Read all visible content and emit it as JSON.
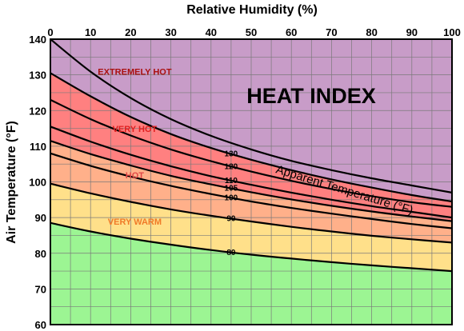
{
  "chart_data": {
    "type": "area",
    "title": "HEAT INDEX",
    "xlabel": "Relative Humidity (%)",
    "ylabel": "Air Temperature (°F)",
    "xlim": [
      0,
      100
    ],
    "ylim": [
      60,
      140
    ],
    "x_ticks": [
      "0",
      "10",
      "20",
      "30",
      "40",
      "50",
      "60",
      "70",
      "80",
      "90",
      "100"
    ],
    "y_ticks": [
      "60",
      "70",
      "80",
      "90",
      "100",
      "110",
      "120",
      "130",
      "140"
    ],
    "grid": true,
    "curve_annotation": "Apparent Temperature (°F)",
    "series": [
      {
        "name": "80",
        "x": [
          0,
          10,
          20,
          30,
          40,
          50,
          60,
          70,
          80,
          90,
          100
        ],
        "y": [
          88.5,
          86.1,
          84.1,
          82.4,
          80.9,
          79.6,
          78.5,
          77.5,
          76.6,
          75.8,
          75.0
        ]
      },
      {
        "name": "90",
        "x": [
          0,
          10,
          20,
          30,
          40,
          50,
          60,
          70,
          80,
          90,
          100
        ],
        "y": [
          99.5,
          96.8,
          94.4,
          92.3,
          90.5,
          88.9,
          87.4,
          86.1,
          84.9,
          83.9,
          83.0
        ]
      },
      {
        "name": "100",
        "x": [
          0,
          10,
          20,
          30,
          40,
          50,
          60,
          70,
          80,
          90,
          100
        ],
        "y": [
          108.0,
          104.5,
          101.5,
          98.9,
          96.6,
          94.5,
          92.7,
          91.1,
          89.6,
          88.2,
          87.0
        ]
      },
      {
        "name": "105",
        "x": [
          0,
          10,
          20,
          30,
          40,
          50,
          60,
          70,
          80,
          90,
          100
        ],
        "y": [
          111.5,
          107.8,
          104.6,
          101.7,
          99.3,
          97.1,
          95.1,
          93.3,
          91.7,
          90.3,
          89.0
        ]
      },
      {
        "name": "110",
        "x": [
          0,
          10,
          20,
          30,
          40,
          50,
          60,
          70,
          80,
          90,
          100
        ],
        "y": [
          115.5,
          111.3,
          107.6,
          104.4,
          101.6,
          99.2,
          97.0,
          95.0,
          93.2,
          91.6,
          90.0
        ]
      },
      {
        "name": "120",
        "x": [
          0,
          10,
          20,
          30,
          40,
          50,
          60,
          70,
          80,
          90,
          100
        ],
        "y": [
          123.0,
          117.6,
          113.0,
          109.1,
          105.8,
          102.9,
          100.3,
          98.0,
          96.0,
          94.3,
          93.0
        ]
      },
      {
        "name": "130",
        "x": [
          0,
          10,
          20,
          30,
          40,
          50,
          60,
          70,
          80,
          90,
          100
        ],
        "y": [
          130.5,
          124.0,
          118.2,
          113.4,
          109.5,
          106.2,
          103.3,
          100.7,
          98.4,
          96.3,
          94.5
        ]
      },
      {
        "name": "",
        "x": [
          0,
          10,
          20,
          30,
          40,
          50,
          60,
          70,
          80,
          90,
          100
        ],
        "y": [
          140.0,
          130.9,
          123.5,
          117.6,
          112.9,
          109.1,
          105.9,
          103.3,
          101.0,
          99.0,
          97.0
        ]
      }
    ],
    "curve_labels": [
      {
        "text": "130",
        "x": 45,
        "y": 107.8
      },
      {
        "text": "120",
        "x": 45,
        "y": 104.3
      },
      {
        "text": "110",
        "x": 45,
        "y": 100.3
      },
      {
        "text": "105",
        "x": 45,
        "y": 98.2
      },
      {
        "text": "100",
        "x": 45,
        "y": 95.5
      },
      {
        "text": "90",
        "x": 45,
        "y": 89.7
      },
      {
        "text": "80",
        "x": 45,
        "y": 80.2
      }
    ],
    "zones": [
      {
        "name": "EXTREMELY HOT",
        "label_x": 21,
        "label_y": 130,
        "color": "#aa1010",
        "fill": "#c89cc8"
      },
      {
        "name": "VERY HOT",
        "label_x": 21,
        "label_y": 114,
        "color": "#e02020",
        "fill": "#ff8080"
      },
      {
        "name": "HOT",
        "label_x": 21,
        "label_y": 101,
        "color": "#e04848",
        "fill": "#ffb08a"
      },
      {
        "name": "VERY WARM",
        "label_x": 21,
        "label_y": 88,
        "color": "#f07a28",
        "fill": "#ffe08a"
      },
      {
        "name": "",
        "label_x": 0,
        "label_y": 0,
        "color": "#000000",
        "fill": "#9cf593"
      }
    ],
    "colors": {
      "extreme": "#c89cc8",
      "very_hot": "#ff8080",
      "hot": "#ffb08a",
      "very_warm": "#ffe08a",
      "safe": "#9cf593",
      "grid": "#7a7a7a",
      "curve": "#000000"
    }
  }
}
